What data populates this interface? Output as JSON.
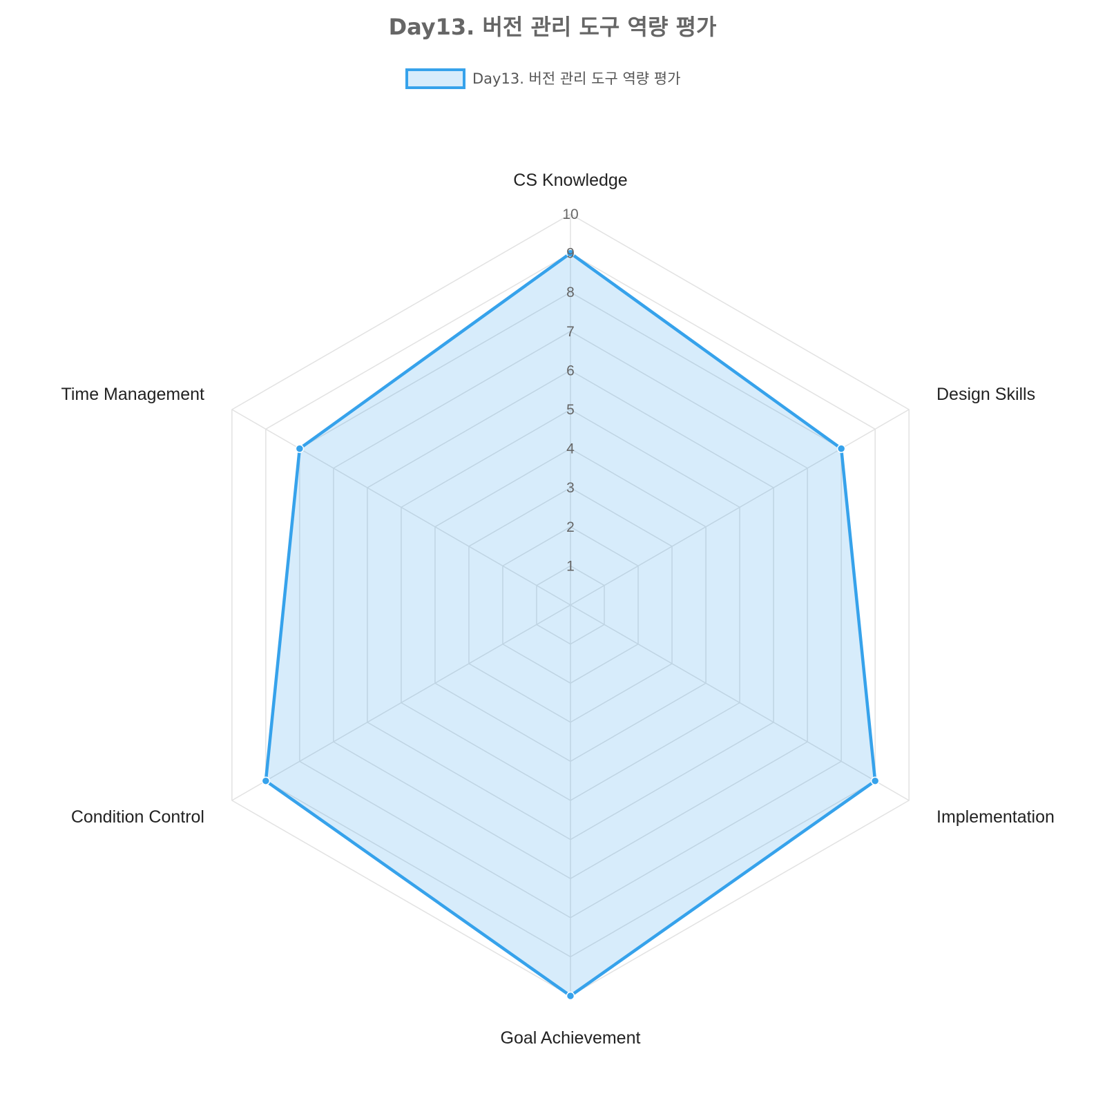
{
  "chart_data": {
    "type": "radar",
    "title": "Day13. 버전 관리 도구 역량 평가",
    "categories": [
      "CS Knowledge",
      "Design Skills",
      "Implementation",
      "Goal Achievement",
      "Condition Control",
      "Time Management"
    ],
    "series": [
      {
        "name": "Day13. 버전 관리 도구 역량 평가",
        "values": [
          9,
          8,
          9,
          10,
          9,
          8
        ]
      }
    ],
    "rlim": [
      0,
      10
    ],
    "ticks": [
      "1",
      "2",
      "3",
      "4",
      "5",
      "6",
      "7",
      "8",
      "9",
      "10"
    ],
    "grid": true,
    "legend_position": "top",
    "colors": {
      "line": "#36a2eb",
      "fill": "rgba(54, 162, 235, 0.2)",
      "grid": "#e2e2e2",
      "point_border": "#ffffff"
    }
  }
}
